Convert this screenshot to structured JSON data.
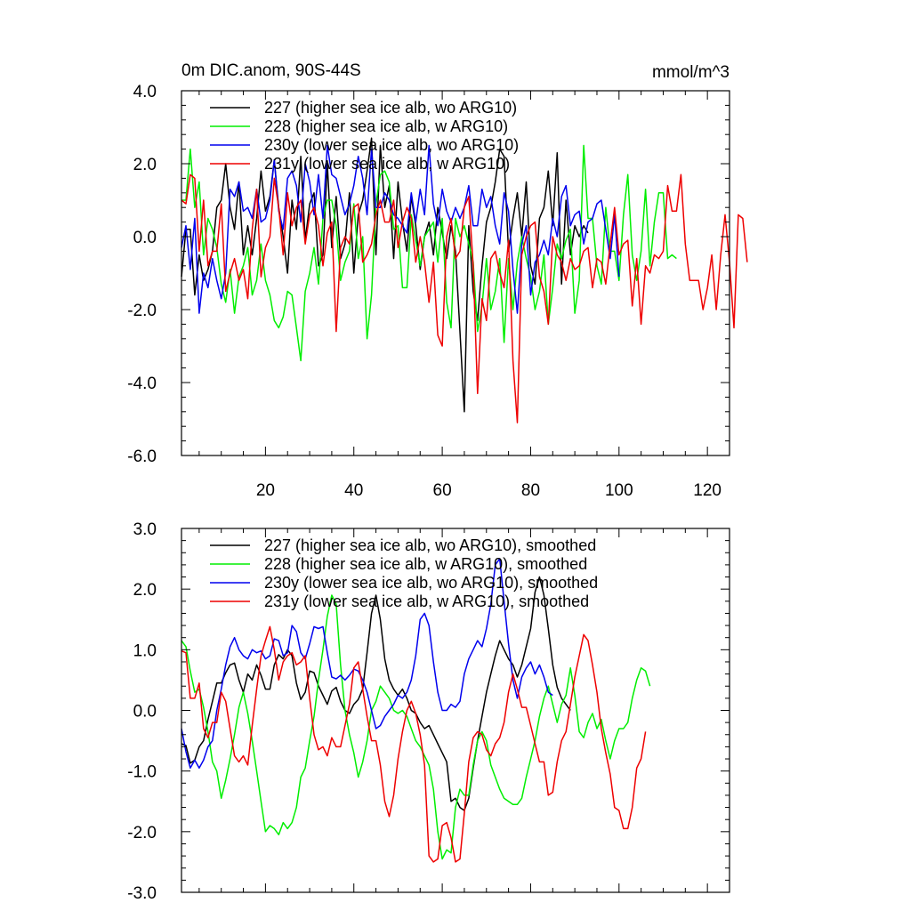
{
  "figure": {
    "title_left": "0m DIC.anom, 90S-44S",
    "title_right": "mmol/m^3"
  },
  "chart_data": [
    {
      "type": "line",
      "title": "0m DIC.anom, 90S-44S",
      "units": "mmol/m^3",
      "xlim": [
        1,
        125
      ],
      "ylim": [
        -6,
        4
      ],
      "x_ticks": [
        20,
        40,
        60,
        80,
        100,
        120
      ],
      "x_tick_labels": [
        "20",
        "40",
        "60",
        "80",
        "100",
        "120"
      ],
      "y_ticks": [
        -6,
        -4,
        -2,
        0,
        2,
        4
      ],
      "y_tick_labels": [
        "-6.0",
        "-4.0",
        "-2.0",
        "0.0",
        "2.0",
        "4.0"
      ],
      "legend_position": "top-left",
      "series": [
        {
          "name": "227 (higher sea ice alb, wo ARG10)",
          "color": "#000000",
          "x_start": 1,
          "values": [
            -1.1,
            0.2,
            0.2,
            -1.6,
            -0.5,
            -1.2,
            -0.9,
            -0.4,
            0.8,
            1.0,
            2.0,
            0.8,
            0.2,
            1.5,
            -0.5,
            0.3,
            -0.5,
            0.5,
            1.8,
            0.7,
            1.1,
            2.1,
            0.8,
            0.0,
            -1.0,
            1.0,
            0.2,
            2.2,
            -0.1,
            0.9,
            1.2,
            -0.8,
            -0.5,
            2.0,
            -0.3,
            1.1,
            -0.6,
            -0.2,
            1.2,
            -1.0,
            0.6,
            1.0,
            1.8,
            2.7,
            -0.5,
            2.5,
            0.8,
            1.4,
            -0.6,
            1.5,
            0.4,
            -0.4,
            1.1,
            0.3,
            -0.9,
            0.0,
            0.4,
            -0.5,
            0.8,
            0.1,
            -0.6,
            0.3,
            -0.4,
            -2.6,
            -4.8,
            0.3,
            -1.5,
            -2.3,
            -0.8,
            0.4,
            0.8,
            1.5,
            2.4,
            2.2,
            -0.4,
            0.5,
            1.2,
            0.0,
            1.5,
            -0.8,
            -1.3,
            0.5,
            0.8,
            1.8,
            0.3,
            2.3,
            -1.3,
            1.0,
            -0.5,
            0.3,
            0.0,
            0.3,
            0.1
          ]
        },
        {
          "name": "228 (higher sea ice alb, w ARG10)",
          "color": "#00ee00",
          "x_start": 1,
          "values": [
            1.0,
            1.0,
            2.4,
            0.8,
            1.5,
            -0.5,
            0.5,
            0.2,
            -0.3,
            -1.3,
            -1.8,
            -0.9,
            -2.1,
            -1.1,
            -0.8,
            -0.3,
            -1.6,
            -1.2,
            -0.2,
            -1.2,
            -1.6,
            -2.3,
            -2.5,
            -2.2,
            -1.5,
            -1.6,
            -2.5,
            -3.4,
            -1.5,
            -1.0,
            -0.3,
            -1.3,
            0.5,
            1.0,
            1.0,
            0.3,
            -1.2,
            -0.7,
            -0.4,
            0.9,
            -0.6,
            0.0,
            -2.8,
            -1.6,
            0.9,
            1.7,
            1.8,
            1.5,
            0.2,
            0.3,
            -1.4,
            -1.4,
            0.6,
            -0.1,
            -0.8,
            0.0,
            0.2,
            0.4,
            -0.7,
            0.5,
            -1.8,
            -2.5,
            0.5,
            0.0,
            0.3,
            -0.2,
            -0.7,
            -2.6,
            -1.9,
            -0.6,
            -2.0,
            -1.5,
            -0.6,
            -2.9,
            -0.6,
            -2.0,
            -0.7,
            0.0,
            -0.6,
            -1.1,
            -2.0,
            -1.5,
            -0.5,
            -2.4,
            -1.4,
            -0.2,
            -0.6,
            -0.1,
            0.2,
            -2.1,
            -1.2,
            2.5,
            0.5,
            0.5,
            -0.8,
            -1.3,
            0.8,
            -0.4,
            -0.4,
            -1.2,
            0.6,
            1.7,
            -0.5,
            -1.2,
            -0.4,
            1.3,
            -0.8,
            0.4,
            1.2,
            1.2,
            -0.6,
            -0.5,
            -0.6
          ]
        },
        {
          "name": "230y (lower sea ice alb, wo ARG10)",
          "color": "#0000ee",
          "x_start": 1,
          "values": [
            -0.3,
            0.3,
            -0.9,
            0.5,
            -2.1,
            -1.0,
            -1.4,
            -0.6,
            -1.2,
            -1.7,
            -1.0,
            1.3,
            1.1,
            1.5,
            0.7,
            0.8,
            0.5,
            1.3,
            0.4,
            0.5,
            1.0,
            2.1,
            0.7,
            0.2,
            1.6,
            1.8,
            1.4,
            0.4,
            2.0,
            1.5,
            0.6,
            1.7,
            0.5,
            2.5,
            1.7,
            1.6,
            1.1,
            0.6,
            0.9,
            1.4,
            2.2,
            1.6,
            0.6,
            2.4,
            0.8,
            0.8,
            1.2,
            1.0,
            0.6,
            0.5,
            0.3,
            0.1,
            1.2,
            0.4,
            1.3,
            0.6,
            2.5,
            0.9,
            0.3,
            1.3,
            0.7,
            0.4,
            0.8,
            0.5,
            0.8,
            1.4,
            0.3,
            0.3,
            1.3,
            0.8,
            1.1,
            0.3,
            -0.2,
            1.2,
            0.7,
            -0.9,
            -2.1,
            -0.2,
            0.3,
            -1.6,
            -0.7,
            -0.5,
            -0.1,
            -0.5,
            0.5,
            0.0,
            1.1,
            1.4,
            0.3,
            0.6,
            0.7,
            -0.2,
            0.4,
            0.5,
            0.9,
            1.0,
            0.2,
            -0.6,
            0.6,
            -1.1
          ]
        },
        {
          "name": "231y (lower sea ice alb, w ARG10)",
          "color": "#ee0000",
          "x_start": 1,
          "values": [
            1.0,
            0.9,
            1.7,
            1.6,
            -0.4,
            1.0,
            -0.8,
            -0.4,
            -0.4,
            0.9,
            -1.5,
            -1.0,
            -0.6,
            -1.2,
            -0.9,
            -1.7,
            0.2,
            1.3,
            -1.1,
            -0.3,
            0.0,
            1.6,
            0.8,
            -0.5,
            1.2,
            0.3,
            0.8,
            1.0,
            -0.2,
            0.6,
            0.8,
            0.3,
            -0.8,
            0.1,
            0.4,
            -2.6,
            -0.3,
            0.0,
            -0.2,
            0.8,
            0.9,
            -0.7,
            -0.5,
            -0.2,
            0.6,
            1.0,
            0.4,
            0.4,
            1.0,
            -0.3,
            0.4,
            0.8,
            0.5,
            -0.7,
            0.0,
            -0.7,
            -1.8,
            -0.7,
            -2.7,
            -3.0,
            0.0,
            0.5,
            -0.6,
            -0.4,
            0.8,
            1.1,
            -0.8,
            -4.3,
            -1.7,
            -2.3,
            -0.6,
            -0.4,
            -1.0,
            -1.4,
            -0.1,
            -3.4,
            -5.1,
            -0.5,
            0.0,
            0.3,
            0.4,
            -1.1,
            -1.5,
            -2.4,
            0.0,
            -0.5,
            -0.7,
            -1.2,
            -0.6,
            -0.9,
            -0.8,
            -0.4,
            -0.3,
            -1.4,
            -0.6,
            -0.7,
            -1.3,
            -0.2,
            0.8,
            -0.5,
            -0.2,
            -0.1,
            -1.9,
            -0.6,
            -2.4,
            -0.8,
            -1.0,
            -0.5,
            -0.6,
            -0.4,
            1.4,
            0.7,
            0.7,
            1.7,
            -0.2,
            -1.2,
            -1.2,
            -1.2,
            -2.0,
            -1.4,
            -0.5,
            -2.0,
            -0.5,
            0.6,
            -0.7,
            -2.5,
            0.6,
            0.5,
            -0.7
          ]
        }
      ]
    },
    {
      "type": "line",
      "title": "",
      "xlim": [
        1,
        125
      ],
      "ylim": [
        -3,
        3
      ],
      "x_ticks": [
        20,
        40,
        60,
        80,
        100,
        120
      ],
      "y_ticks": [
        -3,
        -2,
        -1,
        0,
        1,
        2,
        3
      ],
      "y_tick_labels": [
        "-3.0",
        "-2.0",
        "-1.0",
        "0.0",
        "1.0",
        "2.0",
        "3.0"
      ],
      "legend_position": "top-left",
      "series": [
        {
          "name": "227 (higher sea ice alb, wo ARG10), smoothed",
          "color": "#000000",
          "x_start": 1,
          "values": [
            -0.55,
            -0.58,
            -0.87,
            -0.82,
            -0.6,
            -0.5,
            -0.15,
            0.15,
            0.45,
            0.45,
            0.62,
            0.75,
            0.78,
            0.5,
            0.3,
            0.6,
            0.5,
            0.75,
            0.58,
            0.35,
            0.35,
            0.75,
            0.92,
            0.85,
            1.0,
            0.9,
            0.45,
            0.18,
            0.3,
            0.65,
            0.62,
            0.4,
            0.25,
            0.1,
            0.32,
            0.38,
            0.15,
            0.0,
            -0.05,
            0.1,
            0.18,
            0.35,
            0.95,
            1.6,
            1.9,
            1.5,
            0.85,
            0.5,
            0.35,
            0.25,
            0.35,
            0.2,
            0.0,
            -0.05,
            -0.2,
            -0.3,
            -0.25,
            -0.4,
            -0.55,
            -0.7,
            -0.85,
            -1.5,
            -1.45,
            -1.6,
            -1.65,
            -1.45,
            -0.95,
            -0.5,
            -0.1,
            0.3,
            0.6,
            0.9,
            1.15,
            1.0,
            0.85,
            0.75,
            0.55,
            0.75,
            1.05,
            1.35,
            1.95,
            2.2,
            1.9,
            1.35,
            0.75,
            0.38,
            0.2,
            0.1,
            0.0
          ]
        },
        {
          "name": "228 (higher sea ice alb, w ARG10), smoothed",
          "color": "#00ee00",
          "x_start": 1,
          "values": [
            1.15,
            1.05,
            0.65,
            0.3,
            0.35,
            0.05,
            -0.35,
            -0.85,
            -1.0,
            -1.45,
            -1.15,
            -0.8,
            -0.4,
            0.05,
            0.3,
            -0.05,
            -0.5,
            -1.0,
            -1.5,
            -2.0,
            -1.9,
            -1.95,
            -2.05,
            -1.85,
            -1.95,
            -1.85,
            -1.6,
            -1.1,
            -0.95,
            -0.5,
            -0.1,
            0.5,
            1.0,
            1.55,
            1.9,
            1.75,
            0.75,
            0.0,
            -0.4,
            -0.7,
            -1.1,
            -0.85,
            -0.5,
            0.0,
            0.15,
            0.4,
            0.3,
            0.2,
            0.0,
            -0.05,
            0.0,
            -0.1,
            -0.3,
            -0.5,
            -0.6,
            -0.75,
            -0.9,
            -1.3,
            -2.0,
            -2.45,
            -2.3,
            -2.35,
            -1.6,
            -1.3,
            -1.4,
            -1.4,
            -0.9,
            -0.5,
            -0.35,
            -0.5,
            -0.9,
            -1.1,
            -1.3,
            -1.45,
            -1.5,
            -1.55,
            -1.55,
            -1.45,
            -1.1,
            -0.8,
            -0.5,
            -0.1,
            0.2,
            0.4,
            0.1,
            -0.2,
            0.1,
            0.25,
            0.7,
            0.25,
            -0.35,
            -0.45,
            -0.2,
            -0.05,
            -0.3,
            -0.15,
            -0.5,
            -0.8,
            -0.5,
            -0.3,
            -0.3,
            -0.2,
            0.2,
            0.5,
            0.7,
            0.65,
            0.4
          ]
        },
        {
          "name": "230y (lower sea ice alb, wo ARG10), smoothed",
          "color": "#0000ee",
          "x_start": 1,
          "values": [
            -0.3,
            -0.68,
            -0.95,
            -0.82,
            -0.95,
            -0.82,
            -0.6,
            -0.5,
            0.0,
            0.35,
            0.75,
            1.05,
            1.2,
            1.0,
            0.9,
            0.85,
            1.0,
            0.95,
            0.98,
            0.85,
            0.9,
            1.18,
            1.15,
            0.9,
            0.95,
            1.4,
            1.3,
            0.95,
            0.85,
            1.1,
            1.38,
            1.35,
            1.38,
            0.95,
            0.55,
            0.52,
            0.58,
            0.5,
            0.58,
            0.68,
            0.65,
            0.5,
            0.3,
            0.0,
            -0.3,
            -0.25,
            -0.1,
            0.0,
            0.1,
            0.25,
            0.2,
            0.3,
            0.5,
            0.9,
            1.5,
            1.6,
            1.4,
            0.8,
            0.3,
            0.0,
            0.0,
            0.1,
            0.05,
            0.15,
            0.6,
            0.85,
            1.0,
            1.15,
            1.05,
            1.35,
            1.75,
            2.4,
            2.5,
            1.8,
            1.1,
            0.5,
            0.2,
            0.55,
            0.7,
            0.8,
            0.6,
            0.75,
            0.55,
            0.3,
            0.25
          ]
        },
        {
          "name": "231y (lower sea ice alb, w ARG10), smoothed",
          "color": "#ee0000",
          "x_start": 1,
          "values": [
            0.98,
            0.95,
            0.2,
            0.2,
            0.45,
            -0.3,
            -0.45,
            -0.2,
            -0.2,
            0.3,
            0.15,
            -0.3,
            -0.75,
            -0.85,
            -0.75,
            -0.9,
            -0.25,
            0.35,
            0.9,
            1.15,
            1.38,
            1.0,
            0.5,
            0.8,
            0.9,
            0.95,
            0.75,
            0.8,
            0.9,
            0.2,
            -0.4,
            -0.65,
            -0.6,
            -0.75,
            -0.45,
            -0.6,
            -0.6,
            -0.25,
            0.1,
            0.7,
            0.8,
            0.35,
            -0.1,
            -0.5,
            -0.5,
            -0.9,
            -1.5,
            -1.75,
            -1.4,
            -0.8,
            -0.35,
            0.0,
            0.15,
            -0.05,
            -0.4,
            -0.9,
            -2.4,
            -2.5,
            -2.45,
            -1.9,
            -1.85,
            -2.1,
            -2.5,
            -2.45,
            -1.7,
            -0.85,
            -0.45,
            -0.35,
            -0.4,
            -0.65,
            -0.75,
            -0.55,
            -0.45,
            -0.2,
            0.3,
            0.6,
            0.35,
            0.05,
            0.05,
            -0.25,
            -0.55,
            -0.85,
            -0.85,
            -1.4,
            -1.35,
            -0.85,
            -0.5,
            -0.35,
            0.1,
            0.55,
            0.9,
            1.25,
            1.15,
            0.75,
            0.3,
            -0.3,
            -0.7,
            -1.05,
            -1.6,
            -1.65,
            -1.95,
            -1.95,
            -1.6,
            -0.95,
            -0.8,
            -0.35
          ]
        }
      ]
    }
  ]
}
